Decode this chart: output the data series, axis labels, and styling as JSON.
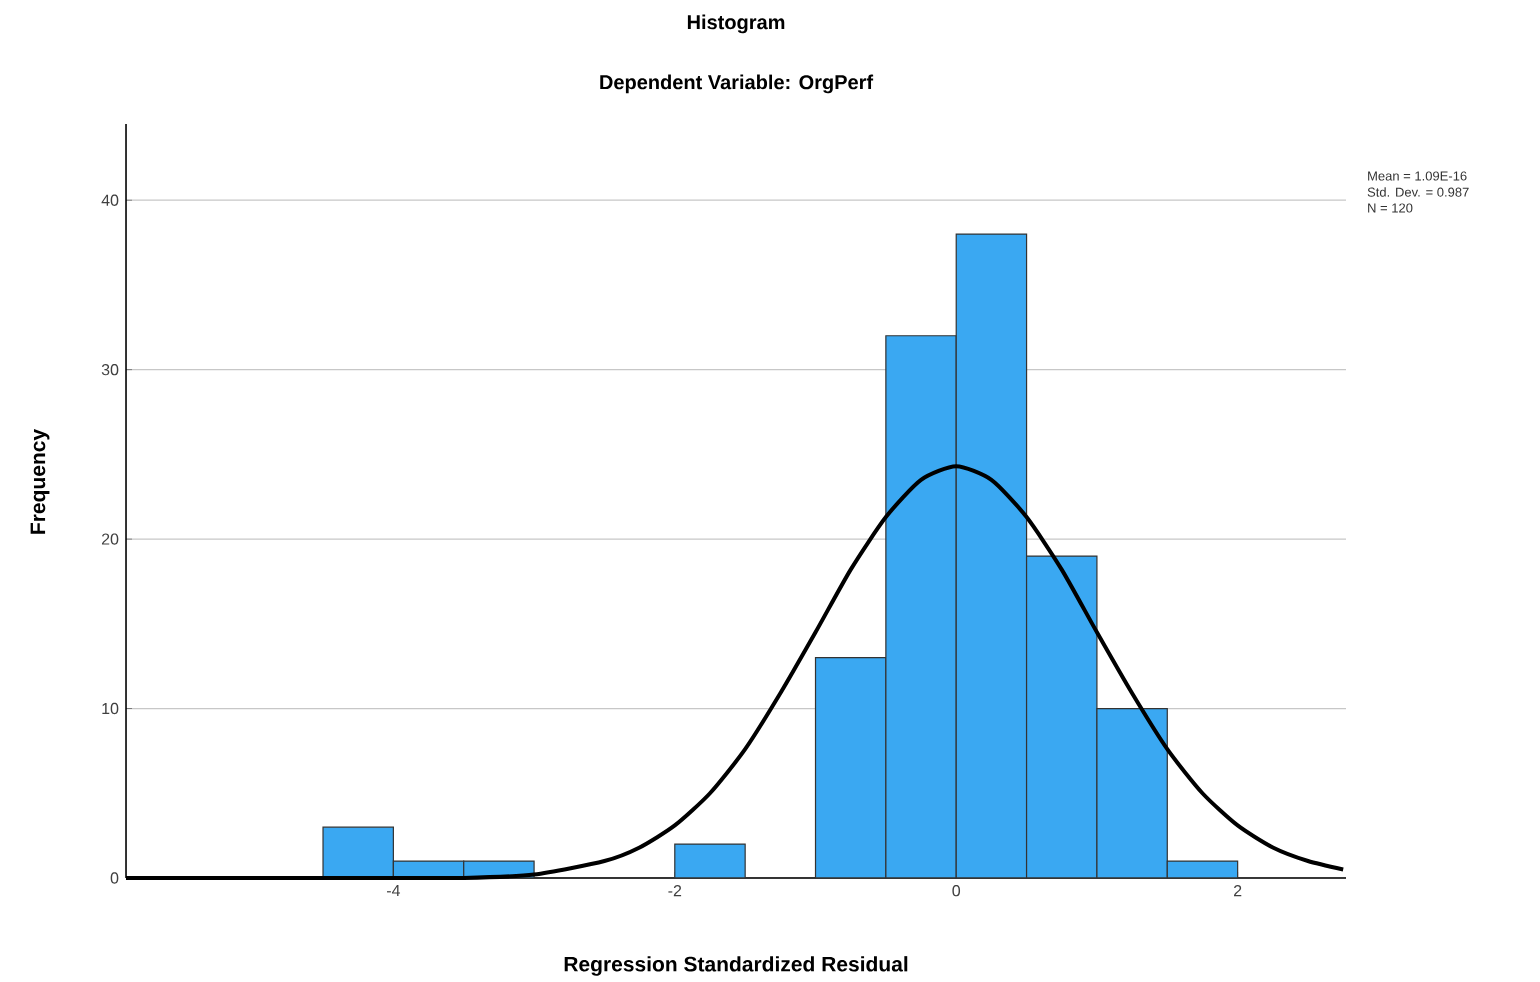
{
  "chart_data": {
    "type": "histogram",
    "title": "Histogram",
    "subtitle": "Dependent Variable: OrgPerf",
    "xlabel": "Regression Standardized Residual",
    "ylabel": "Frequency",
    "series": [
      {
        "color": "#3aa8f2",
        "bins": [
          -4.5,
          -4,
          -3.5,
          -3,
          -2.5,
          -2,
          -1.5,
          -1,
          -0.5,
          0,
          0.5,
          1,
          1.5,
          2
        ],
        "values": [
          3,
          1,
          1,
          0,
          0,
          2,
          0,
          13,
          32,
          38,
          19,
          10,
          1
        ]
      },
      {
        "type": "line",
        "color": "#000000",
        "x": [
          -5.9,
          -5,
          -4.5,
          -4,
          -3.5,
          -3,
          -2.5,
          -2.25,
          -2,
          -1.75,
          -1.5,
          -1.25,
          -1,
          -0.75,
          -0.5,
          -0.25,
          0,
          0.25,
          0.5,
          0.75,
          1,
          1.25,
          1.5,
          1.75,
          2,
          2.25,
          2.5,
          2.75
        ],
        "values": [
          0,
          0,
          0,
          0,
          0,
          0.2,
          1,
          1.8,
          3.1,
          5,
          7.6,
          10.9,
          14.5,
          18.2,
          21.3,
          23.5,
          24.3,
          23.5,
          21.3,
          18.2,
          14.5,
          10.9,
          7.6,
          5,
          3.1,
          1.8,
          1,
          0.5
        ]
      }
    ],
    "xlim": [
      -5.9,
      2.77
    ],
    "ylim": [
      0,
      44.5
    ],
    "xticks": [
      -4,
      -2,
      0,
      2
    ],
    "yticks": [
      0,
      10,
      20,
      30,
      40
    ],
    "grid": "y",
    "annotations": [
      "Mean = 1.09E-16",
      "Std. Dev. = 0.987",
      "N = 120"
    ]
  }
}
